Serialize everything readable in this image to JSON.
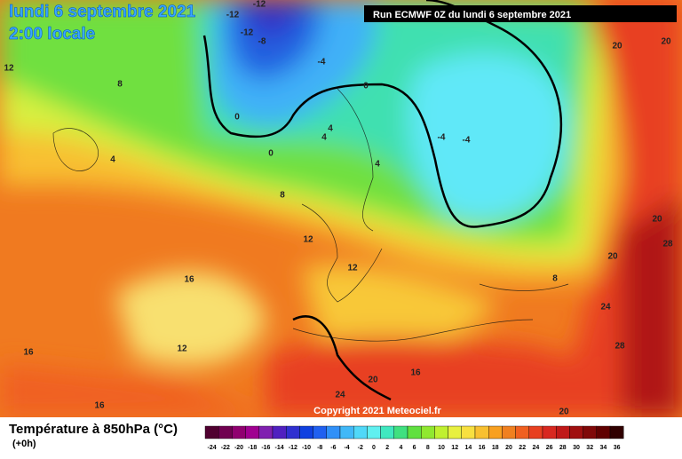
{
  "header": {
    "date": "lundi 6 septembre 2021",
    "time": "2:00 locale",
    "run": "Run ECMWF 0Z du lundi 6 septembre 2021"
  },
  "copyright": "Copyright 2021 Meteociel.fr",
  "legend": {
    "title": "Température à 850hPa (°C)",
    "step": "(+0h)",
    "ticks": [
      -24,
      -22,
      -20,
      -18,
      -16,
      -14,
      -12,
      -10,
      -8,
      -6,
      -4,
      -2,
      0,
      2,
      4,
      6,
      8,
      10,
      12,
      14,
      16,
      18,
      20,
      22,
      24,
      26,
      28,
      30,
      32,
      34,
      36
    ],
    "colors": [
      "#500030",
      "#700050",
      "#900070",
      "#a00090",
      "#8020b0",
      "#5020c0",
      "#3030d0",
      "#1040e0",
      "#2060f0",
      "#3090f8",
      "#40b8f8",
      "#50d8f8",
      "#60f0f0",
      "#40e8c0",
      "#40e080",
      "#60e040",
      "#90e830",
      "#c0f030",
      "#e8f040",
      "#f8e040",
      "#f8c030",
      "#f8a020",
      "#f08020",
      "#f06020",
      "#e84020",
      "#d82820",
      "#c01818",
      "#a01010",
      "#800808",
      "#600000",
      "#300000"
    ]
  },
  "contour_labels": [
    -12,
    -12,
    -12,
    -8,
    -4,
    0,
    0,
    0,
    4,
    4,
    4,
    4,
    -4,
    -4,
    8,
    12,
    8,
    12,
    12,
    16,
    12,
    16,
    16,
    20,
    20,
    20,
    28,
    20,
    8,
    24,
    28,
    24,
    20,
    16,
    20
  ]
}
